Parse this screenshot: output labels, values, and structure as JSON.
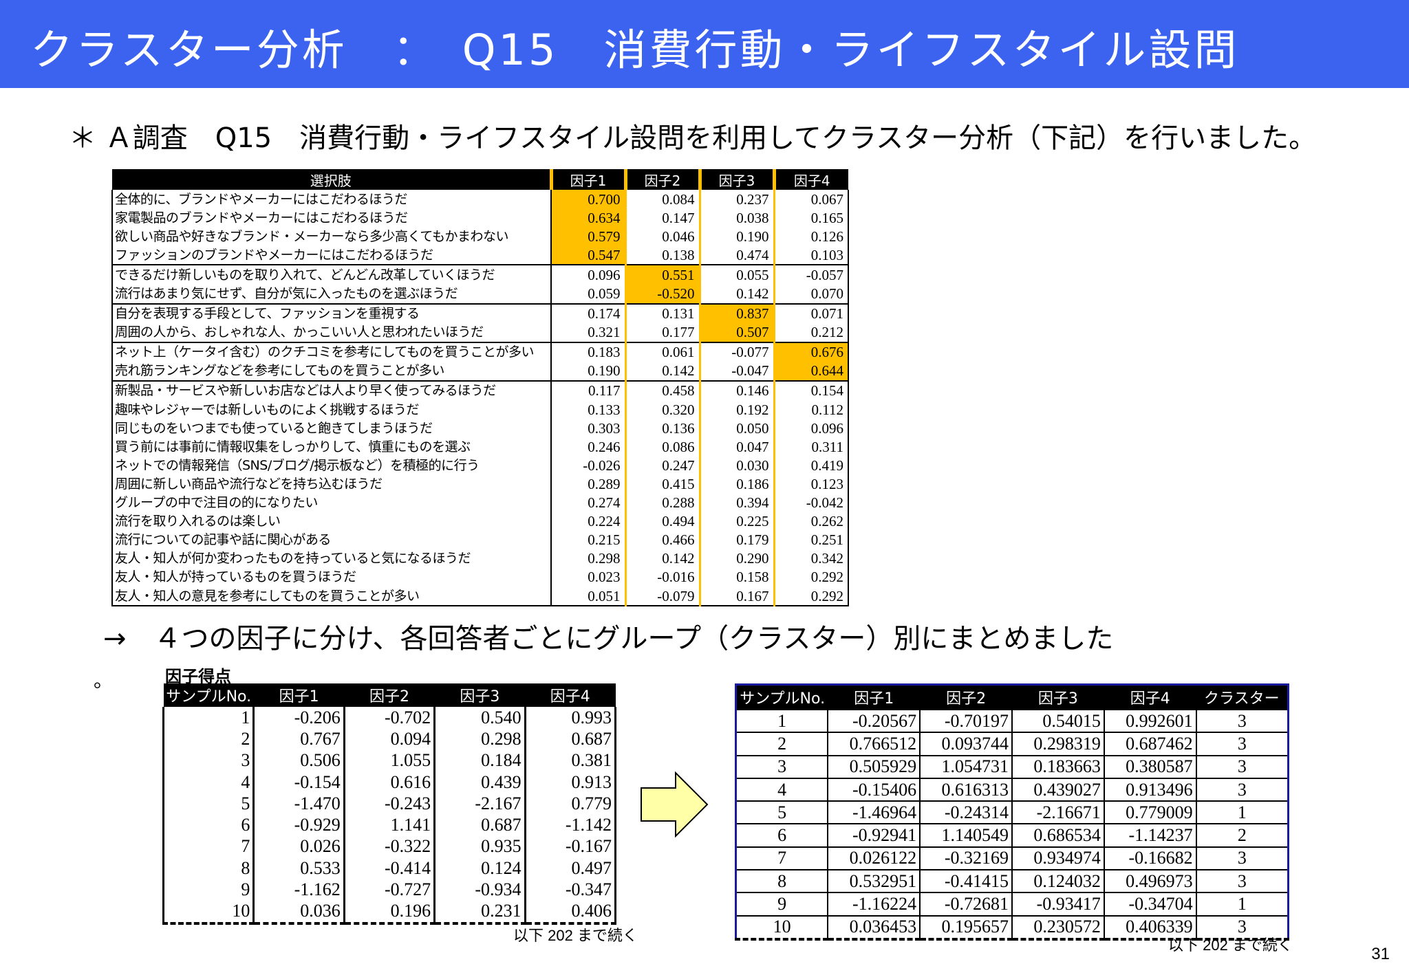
{
  "header": {
    "title": "クラスター分析　：　Q15　消費行動・ライフスタイル設問"
  },
  "intro": "＊ Ａ調査　Q15　消費行動・ライフスタイル設問を利用してクラスター分析（下記）を行いました。",
  "loadings_table": {
    "headers": [
      "選択肢",
      "因子1",
      "因子2",
      "因子3",
      "因子4"
    ],
    "rows": [
      {
        "label": "全体的に、ブランドやメーカーにはこだわるほうだ",
        "v": [
          "0.700",
          "0.084",
          "0.237",
          "0.067"
        ],
        "hl": 0,
        "gend": false
      },
      {
        "label": "家電製品のブランドやメーカーにはこだわるほうだ",
        "v": [
          "0.634",
          "0.147",
          "0.038",
          "0.165"
        ],
        "hl": 0,
        "gend": false
      },
      {
        "label": "欲しい商品や好きなブランド・メーカーなら多少高くてもかまわない",
        "v": [
          "0.579",
          "0.046",
          "0.190",
          "0.126"
        ],
        "hl": 0,
        "gend": false
      },
      {
        "label": "ファッションのブランドやメーカーにはこだわるほうだ",
        "v": [
          "0.547",
          "0.138",
          "0.474",
          "0.103"
        ],
        "hl": 0,
        "gend": true
      },
      {
        "label": "できるだけ新しいものを取り入れて、どんどん改革していくほうだ",
        "v": [
          "0.096",
          "0.551",
          "0.055",
          "-0.057"
        ],
        "hl": 1,
        "gend": false
      },
      {
        "label": "流行はあまり気にせず、自分が気に入ったものを選ぶほうだ",
        "v": [
          "0.059",
          "-0.520",
          "0.142",
          "0.070"
        ],
        "hl": 1,
        "gend": true
      },
      {
        "label": "自分を表現する手段として、ファッションを重視する",
        "v": [
          "0.174",
          "0.131",
          "0.837",
          "0.071"
        ],
        "hl": 2,
        "gend": false
      },
      {
        "label": "周囲の人から、おしゃれな人、かっこいい人と思われたいほうだ",
        "v": [
          "0.321",
          "0.177",
          "0.507",
          "0.212"
        ],
        "hl": 2,
        "gend": true
      },
      {
        "label": "ネット上（ケータイ含む）のクチコミを参考にしてものを買うことが多い",
        "v": [
          "0.183",
          "0.061",
          "-0.077",
          "0.676"
        ],
        "hl": 3,
        "gend": false
      },
      {
        "label": "売れ筋ランキングなどを参考にしてものを買うことが多い",
        "v": [
          "0.190",
          "0.142",
          "-0.047",
          "0.644"
        ],
        "hl": 3,
        "gend": true
      },
      {
        "label": "新製品・サービスや新しいお店などは人より早く使ってみるほうだ",
        "v": [
          "0.117",
          "0.458",
          "0.146",
          "0.154"
        ],
        "hl": -1,
        "gend": false
      },
      {
        "label": "趣味やレジャーでは新しいものによく挑戦するほうだ",
        "v": [
          "0.133",
          "0.320",
          "0.192",
          "0.112"
        ],
        "hl": -1,
        "gend": false
      },
      {
        "label": "同じものをいつまでも使っていると飽きてしまうほうだ",
        "v": [
          "0.303",
          "0.136",
          "0.050",
          "0.096"
        ],
        "hl": -1,
        "gend": false
      },
      {
        "label": "買う前には事前に情報収集をしっかりして、慎重にものを選ぶ",
        "v": [
          "0.246",
          "0.086",
          "0.047",
          "0.311"
        ],
        "hl": -1,
        "gend": false
      },
      {
        "label": "ネットでの情報発信（SNS/ブログ/掲示板など）を積極的に行う",
        "v": [
          "-0.026",
          "0.247",
          "0.030",
          "0.419"
        ],
        "hl": -1,
        "gend": false
      },
      {
        "label": "周囲に新しい商品や流行などを持ち込むほうだ",
        "v": [
          "0.289",
          "0.415",
          "0.186",
          "0.123"
        ],
        "hl": -1,
        "gend": false
      },
      {
        "label": "グループの中で注目の的になりたい",
        "v": [
          "0.274",
          "0.288",
          "0.394",
          "-0.042"
        ],
        "hl": -1,
        "gend": false
      },
      {
        "label": "流行を取り入れるのは楽しい",
        "v": [
          "0.224",
          "0.494",
          "0.225",
          "0.262"
        ],
        "hl": -1,
        "gend": false
      },
      {
        "label": "流行についての記事や話に関心がある",
        "v": [
          "0.215",
          "0.466",
          "0.179",
          "0.251"
        ],
        "hl": -1,
        "gend": false
      },
      {
        "label": "友人・知人が何か変わったものを持っていると気になるほうだ",
        "v": [
          "0.298",
          "0.142",
          "0.290",
          "0.342"
        ],
        "hl": -1,
        "gend": false
      },
      {
        "label": "友人・知人が持っているものを買うほうだ",
        "v": [
          "0.023",
          "-0.016",
          "0.158",
          "0.292"
        ],
        "hl": -1,
        "gend": false
      },
      {
        "label": "友人・知人の意見を参考にしてものを買うことが多い",
        "v": [
          "0.051",
          "-0.079",
          "0.167",
          "0.292"
        ],
        "hl": -1,
        "gend": false
      }
    ]
  },
  "summary": "→　４つの因子に分け、各回答者ごとにグループ（クラスター）別にまとめました",
  "summary_dot": "。",
  "factor_scores_label": "因子得点",
  "scores_left": {
    "headers": [
      "サンプルNo.",
      "因子1",
      "因子2",
      "因子3",
      "因子4"
    ],
    "rows": [
      [
        "1",
        "-0.206",
        "-0.702",
        "0.540",
        "0.993"
      ],
      [
        "2",
        "0.767",
        "0.094",
        "0.298",
        "0.687"
      ],
      [
        "3",
        "0.506",
        "1.055",
        "0.184",
        "0.381"
      ],
      [
        "4",
        "-0.154",
        "0.616",
        "0.439",
        "0.913"
      ],
      [
        "5",
        "-1.470",
        "-0.243",
        "-2.167",
        "0.779"
      ],
      [
        "6",
        "-0.929",
        "1.141",
        "0.687",
        "-1.142"
      ],
      [
        "7",
        "0.026",
        "-0.322",
        "0.935",
        "-0.167"
      ],
      [
        "8",
        "0.533",
        "-0.414",
        "0.124",
        "0.497"
      ],
      [
        "9",
        "-1.162",
        "-0.727",
        "-0.934",
        "-0.347"
      ],
      [
        "10",
        "0.036",
        "0.196",
        "0.231",
        "0.406"
      ]
    ]
  },
  "scores_right": {
    "headers": [
      "サンプルNo.",
      "因子1",
      "因子2",
      "因子3",
      "因子4",
      "クラスター"
    ],
    "rows": [
      [
        "1",
        "-0.20567",
        "-0.70197",
        "0.54015",
        "0.992601",
        "3"
      ],
      [
        "2",
        "0.766512",
        "0.093744",
        "0.298319",
        "0.687462",
        "3"
      ],
      [
        "3",
        "0.505929",
        "1.054731",
        "0.183663",
        "0.380587",
        "3"
      ],
      [
        "4",
        "-0.15406",
        "0.616313",
        "0.439027",
        "0.913496",
        "3"
      ],
      [
        "5",
        "-1.46964",
        "-0.24314",
        "-2.16671",
        "0.779009",
        "1"
      ],
      [
        "6",
        "-0.92941",
        "1.140549",
        "0.686534",
        "-1.14237",
        "2"
      ],
      [
        "7",
        "0.026122",
        "-0.32169",
        "0.934974",
        "-0.16682",
        "3"
      ],
      [
        "8",
        "0.532951",
        "-0.41415",
        "0.124032",
        "0.496973",
        "3"
      ],
      [
        "9",
        "-1.16224",
        "-0.72681",
        "-0.93417",
        "-0.34704",
        "1"
      ],
      [
        "10",
        "0.036453",
        "0.195657",
        "0.230572",
        "0.406339",
        "3"
      ]
    ]
  },
  "continuation_note": "以下 202 まで続く",
  "page_number": "31",
  "colors": {
    "header_bg": "#3B63F0",
    "highlight": "#FFC000",
    "arrow_fill": "#FFFFA8"
  }
}
